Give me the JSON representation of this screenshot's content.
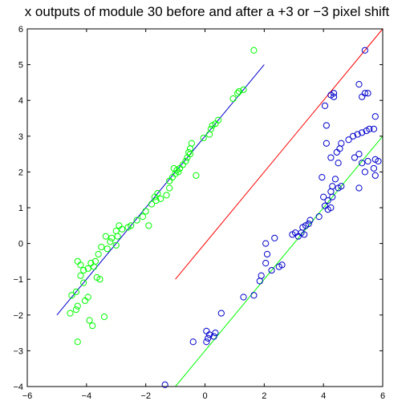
{
  "chart_data": {
    "type": "scatter",
    "title": "x outputs of module 30 before and after a +3 or −3 pixel shift",
    "xlabel": "",
    "ylabel": "",
    "xlim": [
      -6,
      6
    ],
    "ylim": [
      -4,
      6
    ],
    "grid": false,
    "x_ticks": [
      "−6",
      "−4",
      "−2",
      "0",
      "2",
      "4",
      "6"
    ],
    "y_ticks": [
      "−4",
      "−3",
      "−2",
      "−1",
      "0",
      "1",
      "2",
      "3",
      "4",
      "5",
      "6"
    ],
    "colors": {
      "green": "#00ff00",
      "blue": "#0000cc",
      "red": "#ff0000"
    },
    "lines": [
      {
        "color": "blue",
        "x": [
          -5,
          2
        ],
        "y": [
          -2,
          5
        ]
      },
      {
        "color": "red",
        "x": [
          -1,
          6
        ],
        "y": [
          -1,
          6
        ]
      },
      {
        "color": "green",
        "x": [
          -1,
          6
        ],
        "y": [
          -4,
          3
        ]
      }
    ],
    "series": [
      {
        "marker": "circle",
        "color": "green",
        "points": [
          [
            1.65,
            5.4
          ],
          [
            1.1,
            4.2
          ],
          [
            1.15,
            4.25
          ],
          [
            1.3,
            4.3
          ],
          [
            0.95,
            4.05
          ],
          [
            0.45,
            3.45
          ],
          [
            0.35,
            3.35
          ],
          [
            0.2,
            3.2
          ],
          [
            0.25,
            3.3
          ],
          [
            0.15,
            3.05
          ],
          [
            -0.05,
            2.95
          ],
          [
            -0.45,
            2.8
          ],
          [
            -0.5,
            2.65
          ],
          [
            -0.55,
            2.55
          ],
          [
            -0.5,
            2.5
          ],
          [
            -0.6,
            2.4
          ],
          [
            -0.65,
            2.3
          ],
          [
            -0.75,
            2.2
          ],
          [
            -0.85,
            2.1
          ],
          [
            -0.95,
            2.05
          ],
          [
            -1.05,
            2.1
          ],
          [
            -0.9,
            2.0
          ],
          [
            -1.0,
            1.95
          ],
          [
            -0.3,
            1.9
          ],
          [
            -1.1,
            1.85
          ],
          [
            -1.2,
            1.75
          ],
          [
            -1.2,
            1.55
          ],
          [
            -1.3,
            1.35
          ],
          [
            -1.5,
            1.25
          ],
          [
            -1.6,
            1.4
          ],
          [
            -1.7,
            1.3
          ],
          [
            -1.65,
            1.2
          ],
          [
            -1.8,
            1.1
          ],
          [
            -2.0,
            0.9
          ],
          [
            -2.1,
            0.75
          ],
          [
            -1.9,
            0.5
          ],
          [
            -2.3,
            0.65
          ],
          [
            -2.5,
            0.5
          ],
          [
            -2.6,
            0.45
          ],
          [
            -2.8,
            0.4
          ],
          [
            -2.9,
            0.5
          ],
          [
            -3.0,
            0.35
          ],
          [
            -2.95,
            0.2
          ],
          [
            -3.15,
            0.15
          ],
          [
            -3.35,
            0.2
          ],
          [
            -3.2,
            0.05
          ],
          [
            -3.0,
            -0.05
          ],
          [
            -3.3,
            -0.15
          ],
          [
            -3.5,
            -0.1
          ],
          [
            -3.6,
            -0.3
          ],
          [
            -3.7,
            -0.5
          ],
          [
            -3.85,
            -0.55
          ],
          [
            -3.75,
            -0.65
          ],
          [
            -3.95,
            -0.7
          ],
          [
            -4.2,
            -0.6
          ],
          [
            -4.1,
            -0.75
          ],
          [
            -4.3,
            -0.5
          ],
          [
            -4.2,
            -0.9
          ],
          [
            -3.65,
            -0.95
          ],
          [
            -3.55,
            -1.0
          ],
          [
            -4.1,
            -1.1
          ],
          [
            -3.95,
            -1.5
          ],
          [
            -4.35,
            -1.35
          ],
          [
            -4.5,
            -1.45
          ],
          [
            -4.05,
            -1.6
          ],
          [
            -4.3,
            -1.75
          ],
          [
            -4.35,
            -1.85
          ],
          [
            -4.55,
            -1.95
          ],
          [
            -3.9,
            -2.15
          ],
          [
            -3.8,
            -2.3
          ],
          [
            -3.4,
            -2.05
          ],
          [
            -4.3,
            -2.75
          ]
        ]
      },
      {
        "marker": "circle",
        "color": "blue",
        "points": [
          [
            5.4,
            5.4
          ],
          [
            5.2,
            4.45
          ],
          [
            5.4,
            4.2
          ],
          [
            5.5,
            4.2
          ],
          [
            4.35,
            4.2
          ],
          [
            4.25,
            4.15
          ],
          [
            4.35,
            4.1
          ],
          [
            5.3,
            4.1
          ],
          [
            4.05,
            3.85
          ],
          [
            5.75,
            3.55
          ],
          [
            4.1,
            3.3
          ],
          [
            5.15,
            3.05
          ],
          [
            5.3,
            3.1
          ],
          [
            5.45,
            3.15
          ],
          [
            5.55,
            3.2
          ],
          [
            5.7,
            3.2
          ],
          [
            5.0,
            3.0
          ],
          [
            4.85,
            2.9
          ],
          [
            4.6,
            2.8
          ],
          [
            4.1,
            2.8
          ],
          [
            4.55,
            2.65
          ],
          [
            4.45,
            2.55
          ],
          [
            5.2,
            2.5
          ],
          [
            5.05,
            2.4
          ],
          [
            4.25,
            2.4
          ],
          [
            5.75,
            2.35
          ],
          [
            5.5,
            2.3
          ],
          [
            5.85,
            2.3
          ],
          [
            4.5,
            2.25
          ],
          [
            5.3,
            2.25
          ],
          [
            5.7,
            2.1
          ],
          [
            5.75,
            1.9
          ],
          [
            5.4,
            2.0
          ],
          [
            4.4,
            1.8
          ],
          [
            3.95,
            1.85
          ],
          [
            5.2,
            1.55
          ],
          [
            4.0,
            1.3
          ],
          [
            4.5,
            1.55
          ],
          [
            4.6,
            1.6
          ],
          [
            4.3,
            1.6
          ],
          [
            4.25,
            1.45
          ],
          [
            4.3,
            1.3
          ],
          [
            4.15,
            1.2
          ],
          [
            4.05,
            1.05
          ],
          [
            4.25,
            1.0
          ],
          [
            4.15,
            0.95
          ],
          [
            3.85,
            0.75
          ],
          [
            3.5,
            0.55
          ],
          [
            3.4,
            0.5
          ],
          [
            3.55,
            0.65
          ],
          [
            3.3,
            0.45
          ],
          [
            3.25,
            0.3
          ],
          [
            3.05,
            0.3
          ],
          [
            3.15,
            0.2
          ],
          [
            2.95,
            0.25
          ],
          [
            3.35,
            0.25
          ],
          [
            2.35,
            0.15
          ],
          [
            2.05,
            0.0
          ],
          [
            2.1,
            -0.3
          ],
          [
            2.05,
            -0.55
          ],
          [
            2.25,
            -0.75
          ],
          [
            2.5,
            -0.65
          ],
          [
            2.6,
            -0.6
          ],
          [
            1.9,
            -0.9
          ],
          [
            1.85,
            -1.05
          ],
          [
            1.65,
            -1.45
          ],
          [
            1.3,
            -1.5
          ],
          [
            0.55,
            -1.95
          ],
          [
            0.05,
            -2.45
          ],
          [
            0.15,
            -2.55
          ],
          [
            0.35,
            -2.5
          ],
          [
            0.3,
            -2.6
          ],
          [
            0.1,
            -2.65
          ],
          [
            0.05,
            -2.75
          ],
          [
            -0.4,
            -2.75
          ],
          [
            -1.35,
            -3.95
          ]
        ]
      }
    ]
  }
}
